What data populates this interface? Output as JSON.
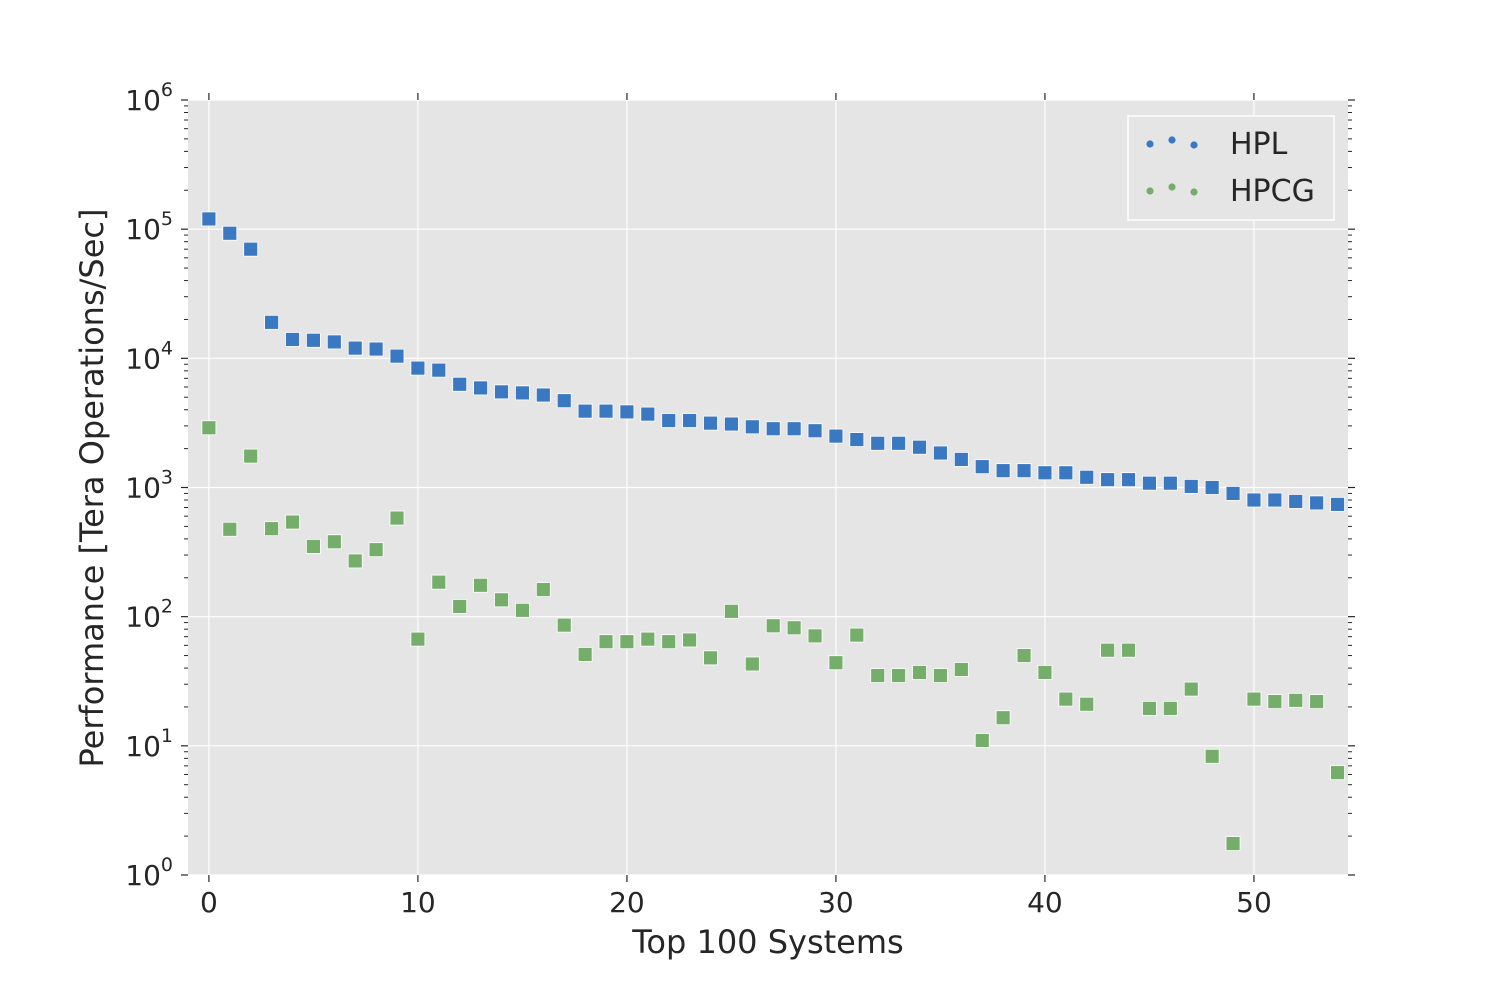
{
  "chart_data": {
    "type": "scatter",
    "title": "",
    "xlabel": "Top 100 Systems",
    "ylabel": "Performance [Tera Operations/Sec]",
    "xlim": [
      -1,
      54.5
    ],
    "ylim": [
      1,
      1000000
    ],
    "yscale": "log",
    "x_ticks": [
      "0",
      "10",
      "20",
      "30",
      "40",
      "50"
    ],
    "y_ticks": [
      {
        "base": "10",
        "exp": "0"
      },
      {
        "base": "10",
        "exp": "1"
      },
      {
        "base": "10",
        "exp": "2"
      },
      {
        "base": "10",
        "exp": "3"
      },
      {
        "base": "10",
        "exp": "4"
      },
      {
        "base": "10",
        "exp": "5"
      },
      {
        "base": "10",
        "exp": "6"
      }
    ],
    "grid": true,
    "legend_position": "top-right",
    "background": "#e5e5e5",
    "series": [
      {
        "name": "HPL",
        "color": "#3a78c2",
        "marker": "square",
        "x": [
          0,
          1,
          2,
          3,
          4,
          5,
          6,
          7,
          8,
          9,
          10,
          11,
          12,
          13,
          14,
          15,
          16,
          17,
          18,
          19,
          20,
          21,
          22,
          23,
          24,
          25,
          26,
          27,
          28,
          29,
          30,
          31,
          32,
          33,
          34,
          35,
          36,
          37,
          38,
          39,
          40,
          41,
          42,
          43,
          44,
          45,
          46,
          47,
          48,
          49,
          50,
          51,
          52,
          53,
          54
        ],
        "values": [
          120000,
          93000,
          70000,
          19000,
          14000,
          13800,
          13400,
          12000,
          11800,
          10400,
          8400,
          8100,
          6300,
          5900,
          5500,
          5400,
          5200,
          4700,
          3900,
          3900,
          3850,
          3700,
          3300,
          3300,
          3150,
          3100,
          2950,
          2850,
          2850,
          2750,
          2500,
          2350,
          2200,
          2200,
          2050,
          1850,
          1650,
          1450,
          1350,
          1350,
          1300,
          1300,
          1200,
          1150,
          1150,
          1080,
          1080,
          1020,
          1000,
          900,
          800,
          800,
          780,
          760,
          740
        ]
      },
      {
        "name": "HPCG",
        "color": "#75ad6a",
        "marker": "square",
        "x": [
          0,
          1,
          2,
          3,
          4,
          5,
          6,
          7,
          8,
          9,
          10,
          11,
          12,
          13,
          14,
          15,
          16,
          17,
          18,
          19,
          20,
          21,
          22,
          23,
          24,
          25,
          26,
          27,
          28,
          29,
          30,
          31,
          32,
          33,
          34,
          35,
          36,
          37,
          38,
          39,
          40,
          41,
          42,
          43,
          44,
          45,
          46,
          47,
          48,
          49,
          50,
          51,
          52,
          53,
          54
        ],
        "values": [
          2900,
          475,
          1750,
          480,
          540,
          350,
          380,
          270,
          330,
          580,
          67,
          185,
          120,
          175,
          135,
          112,
          162,
          86,
          51,
          64,
          64,
          67,
          64,
          66,
          48,
          110,
          43,
          85,
          82,
          71,
          44,
          72,
          35,
          35,
          37,
          35,
          39,
          11,
          16.5,
          50,
          37,
          23,
          21,
          55,
          55,
          19.5,
          19.5,
          27.5,
          8.3,
          1.75,
          23,
          22,
          22.5,
          22,
          6.2
        ]
      }
    ]
  }
}
